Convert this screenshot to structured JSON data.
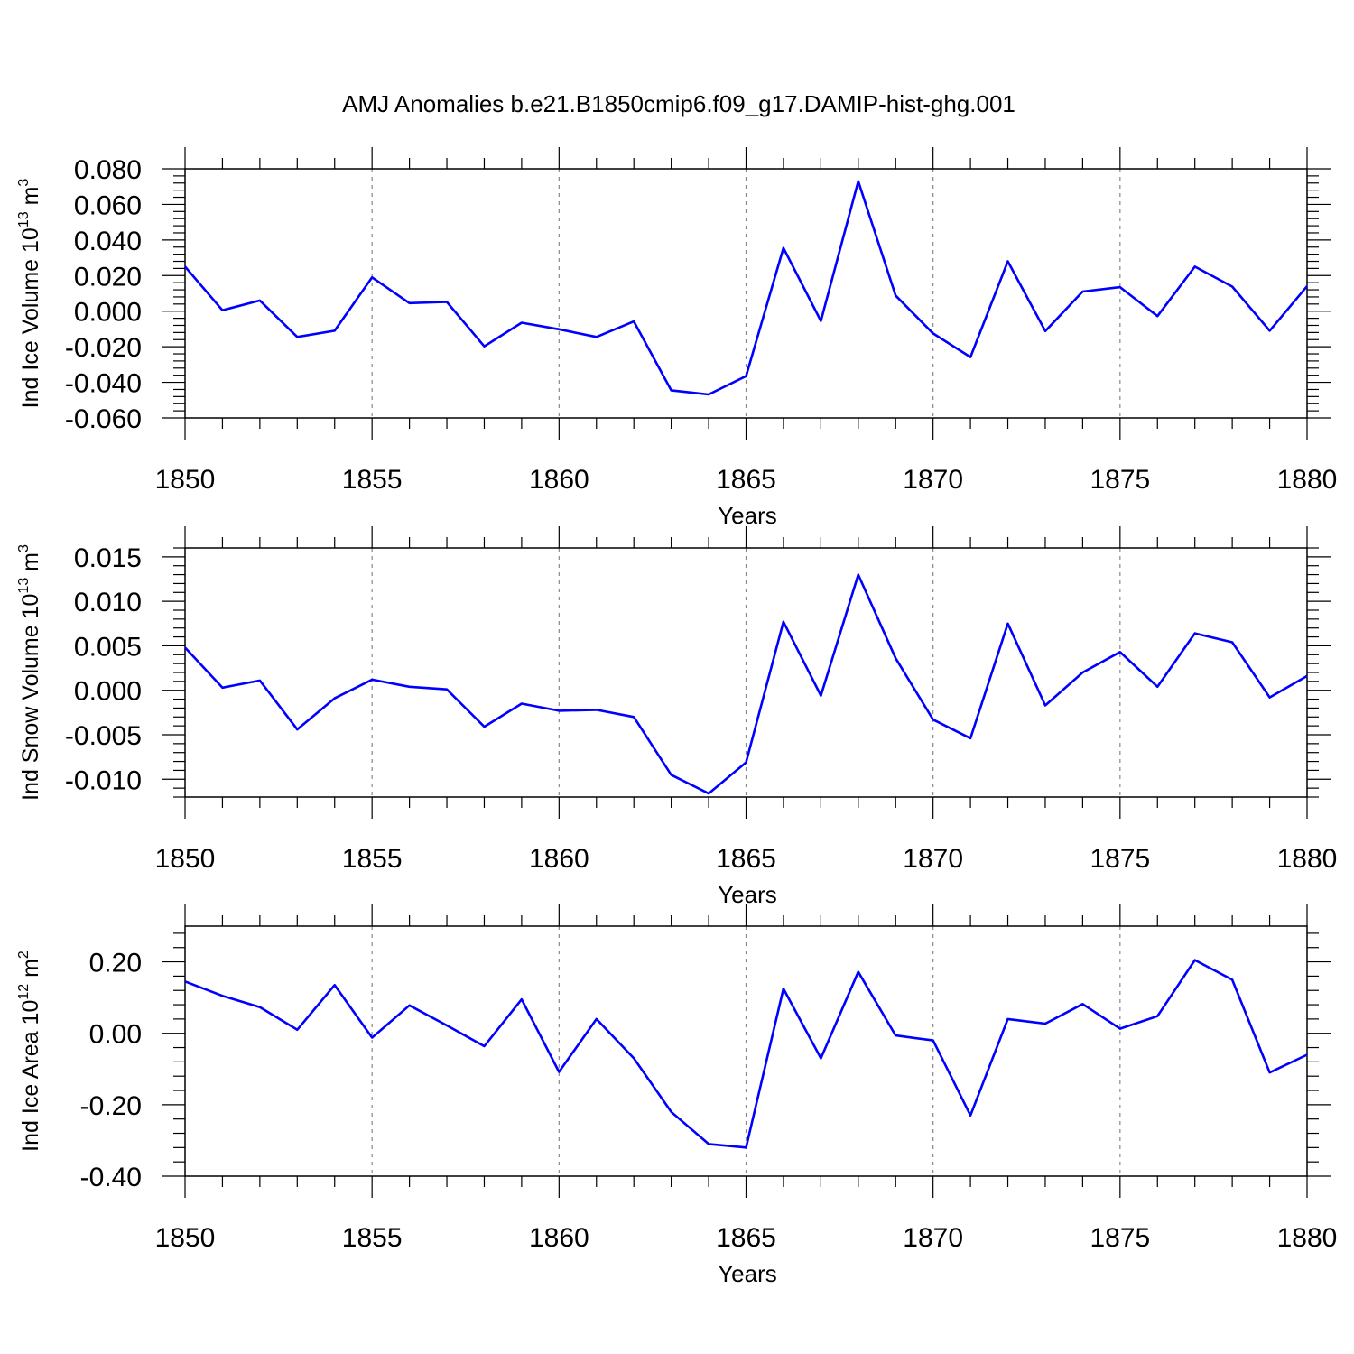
{
  "title": "AMJ Anomalies b.e21.B1850cmip6.f09_g17.DAMIP-hist-ghg.001",
  "colors": {
    "line": "#0000ff",
    "axis": "#000000",
    "grid": "#888888"
  },
  "chart_data": [
    {
      "type": "line",
      "ylabel": "Ind Ice Volume 10",
      "ylabel_exp": "13",
      "ylabel_unit": " m",
      "ylabel_unit_exp": "3",
      "xlabel": "Years",
      "xlim": [
        1850,
        1880
      ],
      "ylim": [
        -0.06,
        0.08
      ],
      "yticks": [
        -0.06,
        -0.04,
        -0.02,
        0.0,
        0.02,
        0.04,
        0.06,
        0.08
      ],
      "ytick_labels": [
        "-0.060",
        "-0.040",
        "-0.020",
        "0.000",
        "0.020",
        "0.040",
        "0.060",
        "0.080"
      ],
      "xticks": [
        1850,
        1855,
        1860,
        1865,
        1870,
        1875,
        1880
      ],
      "xtick_labels": [
        "1850",
        "1855",
        "1860",
        "1865",
        "1870",
        "1875",
        "1880"
      ],
      "x": [
        1850,
        1851,
        1852,
        1853,
        1854,
        1855,
        1856,
        1857,
        1858,
        1859,
        1860,
        1861,
        1862,
        1863,
        1864,
        1865,
        1866,
        1867,
        1868,
        1869,
        1870,
        1871,
        1872,
        1873,
        1874,
        1875,
        1876,
        1877,
        1878,
        1879,
        1880
      ],
      "values": [
        0.025,
        0.0005,
        0.006,
        -0.0145,
        -0.011,
        0.019,
        0.0045,
        0.0052,
        -0.0198,
        -0.0065,
        -0.0102,
        -0.0145,
        -0.0058,
        -0.0445,
        -0.0468,
        -0.0365,
        0.0355,
        -0.0055,
        0.073,
        0.0088,
        -0.0125,
        -0.0258,
        0.028,
        -0.0112,
        0.011,
        0.0135,
        -0.0028,
        0.025,
        0.0138,
        -0.011,
        0.014
      ],
      "grid": "vertical dashed at major x ticks"
    },
    {
      "type": "line",
      "ylabel": "Ind Snow Volume 10",
      "ylabel_exp": "13",
      "ylabel_unit": " m",
      "ylabel_unit_exp": "3",
      "xlabel": "Years",
      "xlim": [
        1850,
        1880
      ],
      "ylim": [
        -0.012,
        0.016
      ],
      "yticks": [
        -0.01,
        -0.005,
        0.0,
        0.005,
        0.01,
        0.015
      ],
      "ytick_labels": [
        "-0.010",
        "-0.005",
        "0.000",
        "0.005",
        "0.010",
        "0.015"
      ],
      "xticks": [
        1850,
        1855,
        1860,
        1865,
        1870,
        1875,
        1880
      ],
      "xtick_labels": [
        "1850",
        "1855",
        "1860",
        "1865",
        "1870",
        "1875",
        "1880"
      ],
      "x": [
        1850,
        1851,
        1852,
        1853,
        1854,
        1855,
        1856,
        1857,
        1858,
        1859,
        1860,
        1861,
        1862,
        1863,
        1864,
        1865,
        1866,
        1867,
        1868,
        1869,
        1870,
        1871,
        1872,
        1873,
        1874,
        1875,
        1876,
        1877,
        1878,
        1879,
        1880
      ],
      "values": [
        0.0048,
        0.0003,
        0.0011,
        -0.0044,
        -0.0009,
        0.0012,
        0.0004,
        0.0001,
        -0.0041,
        -0.0015,
        -0.0023,
        -0.0022,
        -0.003,
        -0.0095,
        -0.0116,
        -0.0081,
        0.0077,
        -0.0006,
        0.013,
        0.0036,
        -0.0033,
        -0.0054,
        0.0075,
        -0.0017,
        0.002,
        0.0043,
        0.0004,
        0.0064,
        0.0054,
        -0.0008,
        0.0016
      ],
      "grid": "vertical dashed at major x ticks"
    },
    {
      "type": "line",
      "ylabel": "Ind Ice Area 10",
      "ylabel_exp": "12",
      "ylabel_unit": " m",
      "ylabel_unit_exp": "2",
      "xlabel": "Years",
      "xlim": [
        1850,
        1880
      ],
      "ylim": [
        -0.4,
        0.3
      ],
      "yticks": [
        -0.4,
        -0.2,
        0.0,
        0.2
      ],
      "ytick_labels": [
        "-0.40",
        "-0.20",
        "0.00",
        "0.20"
      ],
      "xticks": [
        1850,
        1855,
        1860,
        1865,
        1870,
        1875,
        1880
      ],
      "xtick_labels": [
        "1850",
        "1855",
        "1860",
        "1865",
        "1870",
        "1875",
        "1880"
      ],
      "x": [
        1850,
        1851,
        1852,
        1853,
        1854,
        1855,
        1856,
        1857,
        1858,
        1859,
        1860,
        1861,
        1862,
        1863,
        1864,
        1865,
        1866,
        1867,
        1868,
        1869,
        1870,
        1871,
        1872,
        1873,
        1874,
        1875,
        1876,
        1877,
        1878,
        1879,
        1880
      ],
      "values": [
        0.145,
        0.105,
        0.073,
        0.01,
        0.135,
        -0.012,
        0.078,
        0.022,
        -0.036,
        0.095,
        -0.108,
        0.04,
        -0.07,
        -0.22,
        -0.31,
        -0.32,
        0.125,
        -0.07,
        0.172,
        -0.006,
        -0.02,
        -0.23,
        0.04,
        0.027,
        0.082,
        0.013,
        0.048,
        0.205,
        0.15,
        -0.11,
        -0.06
      ],
      "grid": "vertical dashed at major x ticks"
    }
  ]
}
